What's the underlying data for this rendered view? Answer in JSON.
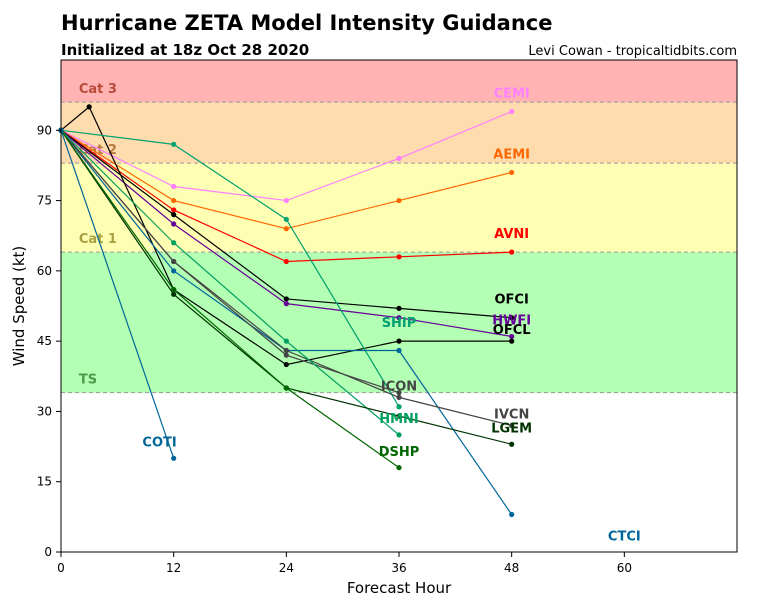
{
  "chart_data": {
    "type": "line",
    "title": "Hurricane ZETA Model Intensity Guidance",
    "subtitle": "Initialized at 18z Oct 28 2020",
    "credit": "Levi Cowan - tropicaltidbits.com",
    "xlabel": "Forecast Hour",
    "ylabel": "Wind Speed (kt)",
    "xlim": [
      0,
      72
    ],
    "ylim": [
      0,
      105
    ],
    "xticks": [
      0,
      12,
      24,
      36,
      48,
      60
    ],
    "yticks": [
      0,
      15,
      30,
      45,
      60,
      75,
      90
    ],
    "grid": false,
    "legend": "none",
    "bands": [
      {
        "label": "TS",
        "from": 34,
        "to": 64,
        "color": "#b3ffb3",
        "label_color": "#4a9a4a"
      },
      {
        "label": "Cat 1",
        "from": 64,
        "to": 83,
        "color": "#ffffb3",
        "label_color": "#a8a040"
      },
      {
        "label": "Cat 2",
        "from": 83,
        "to": 96,
        "color": "#ffdcad",
        "label_color": "#b87a3c"
      },
      {
        "label": "Cat 3",
        "from": 96,
        "to": 105,
        "color": "#ffb3b3",
        "label_color": "#b84a3a"
      }
    ],
    "series": [
      {
        "name": "CEMI",
        "color": "#ff80ff",
        "x": [
          0,
          12,
          24,
          36,
          48
        ],
        "y": [
          90,
          78,
          75,
          84,
          94
        ],
        "label_at": [
          48,
          97
        ]
      },
      {
        "name": "AEMI",
        "color": "#ff6600",
        "x": [
          0,
          12,
          24,
          36,
          48
        ],
        "y": [
          90,
          75,
          69,
          75,
          81
        ],
        "label_at": [
          48,
          84
        ]
      },
      {
        "name": "AVNI",
        "color": "#ff0000",
        "x": [
          0,
          12,
          24,
          36,
          48
        ],
        "y": [
          90,
          73,
          62,
          63,
          64
        ],
        "label_at": [
          48,
          67
        ]
      },
      {
        "name": "OFCI",
        "color": "#000000",
        "x": [
          0,
          12,
          24,
          36,
          48
        ],
        "y": [
          90,
          72,
          54,
          52,
          50
        ],
        "label_at": [
          48,
          53
        ]
      },
      {
        "name": "HWFI",
        "color": "#660099",
        "x": [
          0,
          12,
          24,
          36,
          48
        ],
        "y": [
          90,
          70,
          53,
          50,
          46
        ],
        "label_at": [
          48,
          48.5
        ]
      },
      {
        "name": "OFCL",
        "color": "#000000",
        "x": [
          0,
          3,
          12,
          24,
          36,
          48
        ],
        "y": [
          90,
          95,
          56,
          40,
          45,
          45
        ],
        "label_at": [
          48,
          46.5
        ]
      },
      {
        "name": "SHIP",
        "color": "#00a070",
        "x": [
          0,
          12,
          24,
          36
        ],
        "y": [
          90,
          87,
          71,
          31
        ],
        "label_at": [
          36,
          48
        ]
      },
      {
        "name": "CTCI",
        "color": "#006699",
        "x": [
          0,
          12,
          24,
          36,
          48
        ],
        "y": [
          90,
          60,
          43,
          43,
          8
        ],
        "label_at": [
          60,
          2.5
        ]
      },
      {
        "name": "ICON",
        "color": "#444444",
        "x": [
          0,
          12,
          24,
          36
        ],
        "y": [
          90,
          62,
          42,
          34
        ],
        "label_at": [
          36,
          34.5
        ]
      },
      {
        "name": "IVCN",
        "color": "#444444",
        "x": [
          0,
          12,
          24,
          36,
          48
        ],
        "y": [
          90,
          62,
          43,
          33,
          27
        ],
        "label_at": [
          48,
          28.5
        ]
      },
      {
        "name": "HMNI",
        "color": "#00a060",
        "x": [
          0,
          12,
          24,
          36
        ],
        "y": [
          90,
          66,
          45,
          25
        ],
        "label_at": [
          36,
          27.5
        ]
      },
      {
        "name": "LGEM",
        "color": "#003300",
        "x": [
          0,
          12,
          24,
          36,
          48
        ],
        "y": [
          90,
          55,
          35,
          29,
          23
        ],
        "label_at": [
          48,
          25.5
        ]
      },
      {
        "name": "DSHP",
        "color": "#006600",
        "x": [
          0,
          12,
          24,
          36
        ],
        "y": [
          90,
          56,
          35,
          18
        ],
        "label_at": [
          36,
          20.5
        ]
      },
      {
        "name": "COTI",
        "color": "#006699",
        "x": [
          0,
          12
        ],
        "y": [
          90,
          20
        ],
        "label_at": [
          10.5,
          22.5
        ]
      }
    ]
  }
}
